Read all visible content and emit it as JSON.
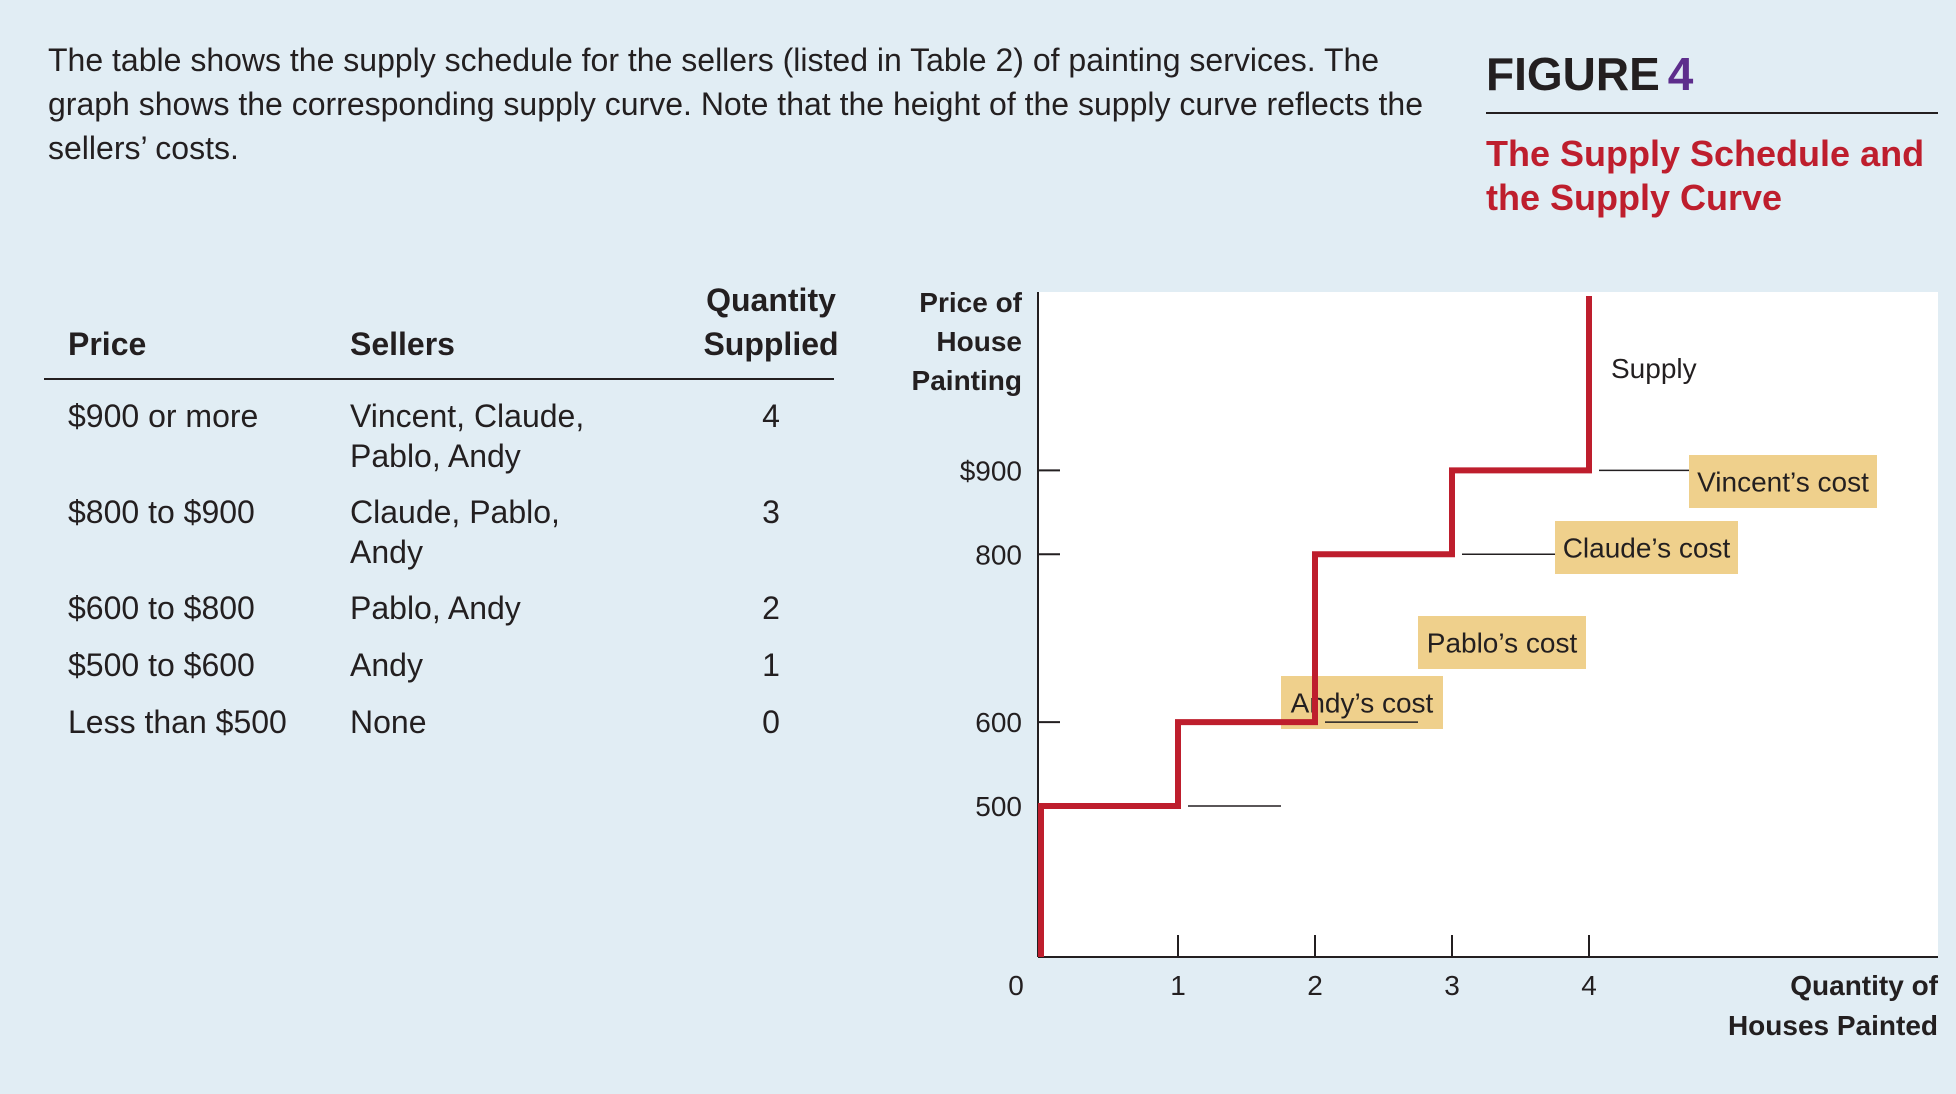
{
  "caption": "The table shows the supply schedule for the sellers (listed in Table 2) of painting services. The graph shows the corresponding supply curve. Note that the height of the supply curve reflects the sellers’ costs.",
  "figure": {
    "label": "FIGURE",
    "number": "4",
    "title": "The Supply Schedule and the Supply Curve"
  },
  "table": {
    "headers": {
      "price": "Price",
      "sellers": "Sellers",
      "quantity": "Quantity\nSupplied"
    },
    "rows": [
      {
        "price": "$900 or more",
        "sellers": "Vincent, Claude, Pablo, Andy",
        "quantity": "4"
      },
      {
        "price": "$800 to $900",
        "sellers": "Claude, Pablo, Andy",
        "quantity": "3"
      },
      {
        "price": "$600 to $800",
        "sellers": "Pablo, Andy",
        "quantity": "2"
      },
      {
        "price": "$500 to $600",
        "sellers": "Andy",
        "quantity": "1"
      },
      {
        "price": "Less than $500",
        "sellers": "None",
        "quantity": "0"
      }
    ]
  },
  "chart_data": {
    "type": "line",
    "step": true,
    "ylabel": [
      "Price of",
      "House",
      "Painting"
    ],
    "xlabel": [
      "Quantity of",
      "Houses Painted"
    ],
    "x_ticks": [
      "0",
      "1",
      "2",
      "3",
      "4"
    ],
    "y_ticks": [
      {
        "value": 900,
        "label": "$900"
      },
      {
        "value": 800,
        "label": "800"
      },
      {
        "value": 600,
        "label": "600"
      },
      {
        "value": 500,
        "label": "500"
      }
    ],
    "series": [
      {
        "name": "Supply",
        "color": "#be1e2d",
        "points": [
          [
            0,
            0
          ],
          [
            0,
            500
          ],
          [
            1,
            500
          ],
          [
            1,
            600
          ],
          [
            2,
            600
          ],
          [
            2,
            800
          ],
          [
            3,
            800
          ],
          [
            3,
            900
          ],
          [
            4,
            900
          ],
          [
            4,
            1280
          ]
        ]
      }
    ],
    "annotations": [
      {
        "text": "Andy’s cost",
        "x": 1,
        "y": 500
      },
      {
        "text": "Pablo’s cost",
        "x": 2,
        "y": 600
      },
      {
        "text": "Claude’s cost",
        "x": 3,
        "y": 800
      },
      {
        "text": "Vincent’s cost",
        "x": 4,
        "y": 900
      }
    ],
    "colors": {
      "curve": "#be1e2d",
      "plot_bg": "#ffffff",
      "label_box": "#efd08c",
      "axis": "#231f20"
    }
  }
}
